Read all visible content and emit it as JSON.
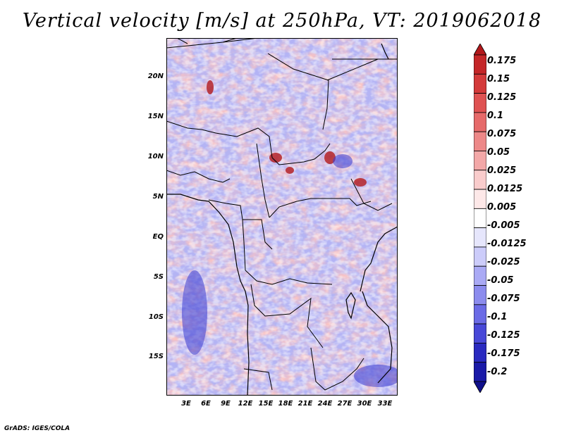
{
  "title": "Vertical velocity [m/s] at 250hPa, VT: 2019062018",
  "credit": "GrADS: IGES/COLA",
  "map": {
    "lat_labels": [
      "20N",
      "15N",
      "10N",
      "5N",
      "EQ",
      "5S",
      "10S",
      "15S"
    ],
    "lon_labels": [
      "3E",
      "6E",
      "9E",
      "12E",
      "15E",
      "18E",
      "21E",
      "24E",
      "27E",
      "30E",
      "33E"
    ]
  },
  "colorbar": {
    "labels": [
      "0.175",
      "0.15",
      "0.125",
      "0.1",
      "0.075",
      "0.05",
      "0.025",
      "0.0125",
      "0.005",
      "-0.005",
      "-0.0125",
      "-0.025",
      "-0.05",
      "-0.075",
      "-0.1",
      "-0.125",
      "-0.175",
      "-0.2"
    ],
    "colors": [
      "#b2181b",
      "#c42628",
      "#d43a3a",
      "#df5252",
      "#e66a6a",
      "#ed8888",
      "#f3a8a8",
      "#f9cccc",
      "#fde8e8",
      "#ffffff",
      "#e6e6fc",
      "#ccccfa",
      "#aaaaf5",
      "#8c8cee",
      "#6b6be6",
      "#4848d8",
      "#2a2ac0",
      "#1a1aa8",
      "#10108c"
    ]
  }
}
